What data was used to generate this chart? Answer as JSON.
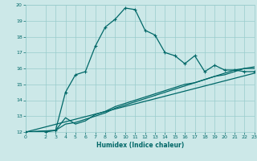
{
  "title": "",
  "xlabel": "Humidex (Indice chaleur)",
  "bg_color": "#cce8e8",
  "line_color": "#006868",
  "grid_color": "#99cccc",
  "xlim": [
    0,
    23
  ],
  "ylim": [
    12,
    20
  ],
  "xticks": [
    0,
    2,
    3,
    4,
    5,
    6,
    7,
    8,
    9,
    10,
    11,
    12,
    13,
    14,
    15,
    16,
    17,
    18,
    19,
    20,
    21,
    22,
    23
  ],
  "yticks": [
    12,
    13,
    14,
    15,
    16,
    17,
    18,
    19,
    20
  ],
  "line1_x": [
    0,
    2,
    3,
    4,
    5,
    6,
    7,
    8,
    9,
    10,
    11,
    12,
    13,
    14,
    15,
    16,
    17,
    18,
    19,
    20,
    21,
    22,
    23
  ],
  "line1_y": [
    12.0,
    12.0,
    12.1,
    14.5,
    15.6,
    15.8,
    17.4,
    18.6,
    19.1,
    19.8,
    19.7,
    18.4,
    18.1,
    17.0,
    16.8,
    16.3,
    16.8,
    15.8,
    16.2,
    15.9,
    15.9,
    15.8,
    15.8
  ],
  "line2_x": [
    0,
    3,
    4,
    5,
    6,
    7,
    8,
    9,
    10,
    11,
    12,
    13,
    14,
    15,
    16,
    17,
    18,
    19,
    20,
    21,
    22,
    23
  ],
  "line2_y": [
    12.0,
    12.1,
    12.9,
    12.5,
    12.7,
    13.1,
    13.3,
    13.6,
    13.8,
    14.0,
    14.2,
    14.4,
    14.6,
    14.8,
    15.0,
    15.1,
    15.3,
    15.5,
    15.7,
    15.9,
    16.0,
    16.0
  ],
  "line3_x": [
    0,
    3,
    4,
    5,
    6,
    7,
    8,
    9,
    10,
    11,
    12,
    13,
    14,
    15,
    16,
    17,
    18,
    19,
    20,
    21,
    22,
    23
  ],
  "line3_y": [
    12.0,
    12.1,
    12.5,
    12.6,
    12.8,
    13.0,
    13.2,
    13.5,
    13.7,
    13.9,
    14.1,
    14.3,
    14.5,
    14.7,
    14.9,
    15.1,
    15.3,
    15.5,
    15.6,
    15.8,
    16.0,
    16.1
  ],
  "line4_x": [
    0,
    23
  ],
  "line4_y": [
    12.0,
    15.7
  ]
}
